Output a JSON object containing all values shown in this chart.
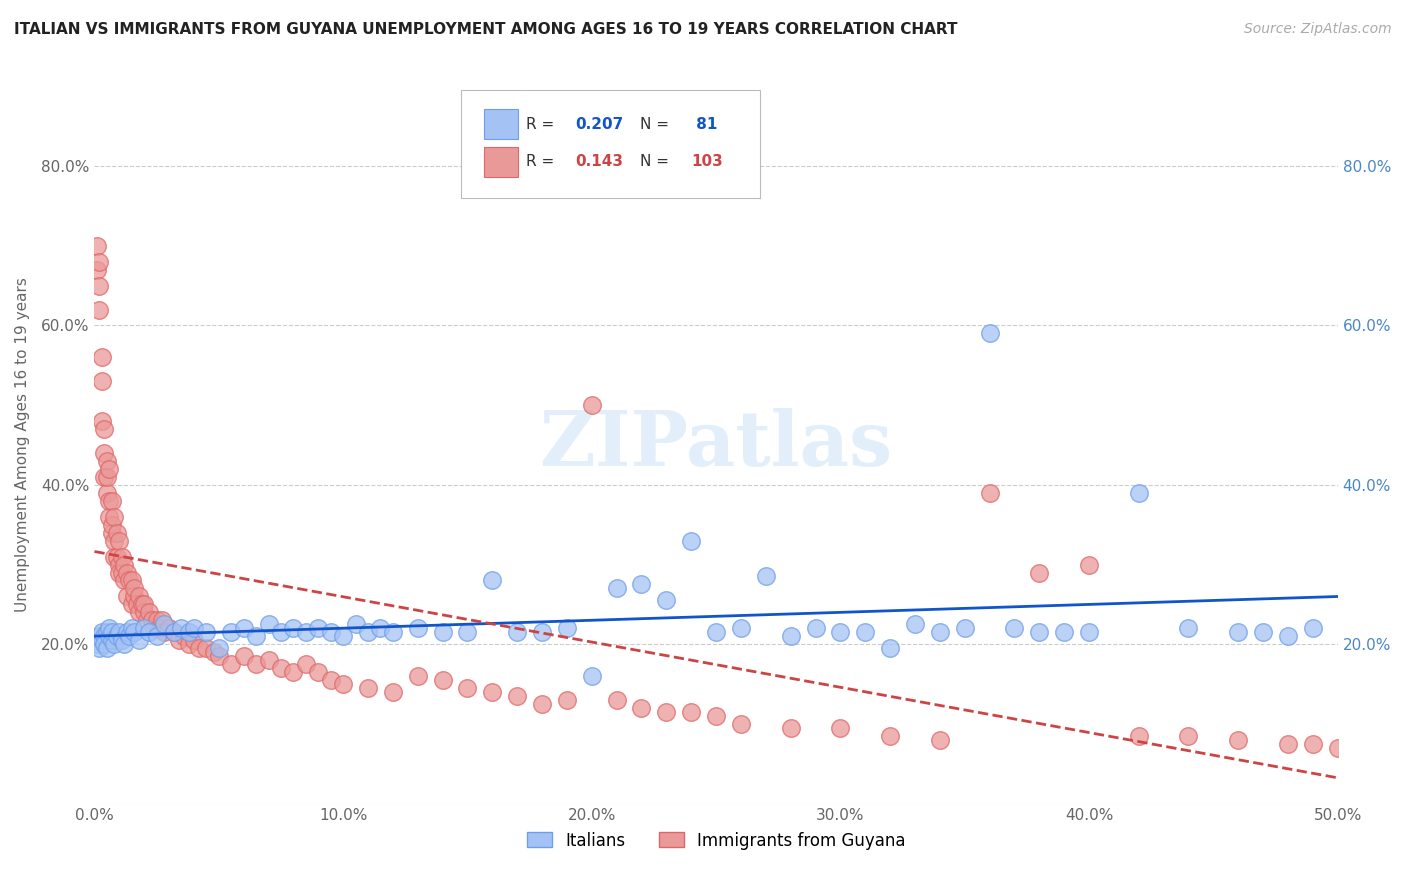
{
  "title": "ITALIAN VS IMMIGRANTS FROM GUYANA UNEMPLOYMENT AMONG AGES 16 TO 19 YEARS CORRELATION CHART",
  "source": "Source: ZipAtlas.com",
  "ylabel": "Unemployment Among Ages 16 to 19 years",
  "x_min": 0.0,
  "x_max": 0.5,
  "y_min": 0.0,
  "y_max": 0.9,
  "x_ticks": [
    0.0,
    0.1,
    0.2,
    0.3,
    0.4,
    0.5
  ],
  "x_tick_labels": [
    "0.0%",
    "10.0%",
    "20.0%",
    "30.0%",
    "40.0%",
    "50.0%"
  ],
  "y_ticks_left": [
    0.0,
    0.2,
    0.4,
    0.6,
    0.8
  ],
  "y_tick_labels_left": [
    "",
    "20.0%",
    "40.0%",
    "60.0%",
    "80.0%"
  ],
  "y_ticks_right": [
    0.2,
    0.4,
    0.6,
    0.8
  ],
  "y_tick_labels_right": [
    "20.0%",
    "40.0%",
    "60.0%",
    "80.0%"
  ],
  "italians_color": "#a4c2f4",
  "italians_edge_color": "#6d9eeb",
  "guyana_color": "#ea9999",
  "guyana_edge_color": "#e06666",
  "italians_line_color": "#1155cc",
  "guyana_line_color": "#cc4444",
  "R_italians": 0.207,
  "N_italians": 81,
  "R_guyana": 0.143,
  "N_guyana": 103,
  "legend_italians": "Italians",
  "legend_guyana": "Immigrants from Guyana",
  "watermark": "ZIPatlas",
  "background_color": "#ffffff",
  "grid_color": "#cccccc",
  "italians_x": [
    0.001,
    0.002,
    0.002,
    0.003,
    0.003,
    0.004,
    0.004,
    0.005,
    0.005,
    0.006,
    0.006,
    0.007,
    0.007,
    0.008,
    0.009,
    0.01,
    0.011,
    0.012,
    0.013,
    0.014,
    0.015,
    0.016,
    0.018,
    0.02,
    0.022,
    0.025,
    0.028,
    0.032,
    0.035,
    0.038,
    0.04,
    0.045,
    0.05,
    0.055,
    0.06,
    0.065,
    0.07,
    0.075,
    0.08,
    0.085,
    0.09,
    0.095,
    0.1,
    0.105,
    0.11,
    0.115,
    0.12,
    0.13,
    0.14,
    0.15,
    0.16,
    0.17,
    0.18,
    0.19,
    0.2,
    0.21,
    0.22,
    0.23,
    0.24,
    0.25,
    0.26,
    0.27,
    0.28,
    0.29,
    0.3,
    0.31,
    0.32,
    0.33,
    0.34,
    0.35,
    0.36,
    0.37,
    0.38,
    0.39,
    0.4,
    0.42,
    0.44,
    0.46,
    0.47,
    0.48,
    0.49
  ],
  "italians_y": [
    0.2,
    0.195,
    0.21,
    0.205,
    0.215,
    0.21,
    0.2,
    0.215,
    0.195,
    0.21,
    0.22,
    0.205,
    0.215,
    0.2,
    0.21,
    0.215,
    0.205,
    0.2,
    0.215,
    0.21,
    0.22,
    0.215,
    0.205,
    0.22,
    0.215,
    0.21,
    0.225,
    0.215,
    0.22,
    0.215,
    0.22,
    0.215,
    0.195,
    0.215,
    0.22,
    0.21,
    0.225,
    0.215,
    0.22,
    0.215,
    0.22,
    0.215,
    0.21,
    0.225,
    0.215,
    0.22,
    0.215,
    0.22,
    0.215,
    0.215,
    0.28,
    0.215,
    0.215,
    0.22,
    0.16,
    0.27,
    0.275,
    0.255,
    0.33,
    0.215,
    0.22,
    0.285,
    0.21,
    0.22,
    0.215,
    0.215,
    0.195,
    0.225,
    0.215,
    0.22,
    0.59,
    0.22,
    0.215,
    0.215,
    0.215,
    0.39,
    0.22,
    0.215,
    0.215,
    0.21,
    0.22
  ],
  "guyana_x": [
    0.001,
    0.001,
    0.002,
    0.002,
    0.002,
    0.003,
    0.003,
    0.003,
    0.004,
    0.004,
    0.004,
    0.005,
    0.005,
    0.005,
    0.006,
    0.006,
    0.006,
    0.007,
    0.007,
    0.007,
    0.008,
    0.008,
    0.008,
    0.009,
    0.009,
    0.01,
    0.01,
    0.01,
    0.011,
    0.011,
    0.012,
    0.012,
    0.013,
    0.013,
    0.014,
    0.015,
    0.015,
    0.016,
    0.016,
    0.017,
    0.018,
    0.018,
    0.019,
    0.02,
    0.02,
    0.021,
    0.022,
    0.023,
    0.024,
    0.025,
    0.026,
    0.027,
    0.028,
    0.03,
    0.032,
    0.034,
    0.036,
    0.038,
    0.04,
    0.042,
    0.045,
    0.048,
    0.05,
    0.055,
    0.06,
    0.065,
    0.07,
    0.075,
    0.08,
    0.085,
    0.09,
    0.095,
    0.1,
    0.11,
    0.12,
    0.13,
    0.14,
    0.15,
    0.16,
    0.17,
    0.18,
    0.19,
    0.2,
    0.21,
    0.22,
    0.23,
    0.24,
    0.25,
    0.26,
    0.28,
    0.3,
    0.32,
    0.34,
    0.36,
    0.38,
    0.4,
    0.42,
    0.44,
    0.46,
    0.48,
    0.49,
    0.5,
    0.51
  ],
  "guyana_y": [
    0.7,
    0.67,
    0.68,
    0.65,
    0.62,
    0.56,
    0.53,
    0.48,
    0.44,
    0.47,
    0.41,
    0.43,
    0.39,
    0.41,
    0.38,
    0.36,
    0.42,
    0.34,
    0.38,
    0.35,
    0.33,
    0.36,
    0.31,
    0.34,
    0.31,
    0.3,
    0.33,
    0.29,
    0.29,
    0.31,
    0.28,
    0.3,
    0.29,
    0.26,
    0.28,
    0.25,
    0.28,
    0.26,
    0.27,
    0.25,
    0.24,
    0.26,
    0.25,
    0.24,
    0.25,
    0.23,
    0.24,
    0.23,
    0.22,
    0.23,
    0.22,
    0.23,
    0.215,
    0.22,
    0.215,
    0.205,
    0.21,
    0.2,
    0.205,
    0.195,
    0.195,
    0.19,
    0.185,
    0.175,
    0.185,
    0.175,
    0.18,
    0.17,
    0.165,
    0.175,
    0.165,
    0.155,
    0.15,
    0.145,
    0.14,
    0.16,
    0.155,
    0.145,
    0.14,
    0.135,
    0.125,
    0.13,
    0.5,
    0.13,
    0.12,
    0.115,
    0.115,
    0.11,
    0.1,
    0.095,
    0.095,
    0.085,
    0.08,
    0.39,
    0.29,
    0.3,
    0.085,
    0.085,
    0.08,
    0.075,
    0.075,
    0.07,
    0.065
  ]
}
